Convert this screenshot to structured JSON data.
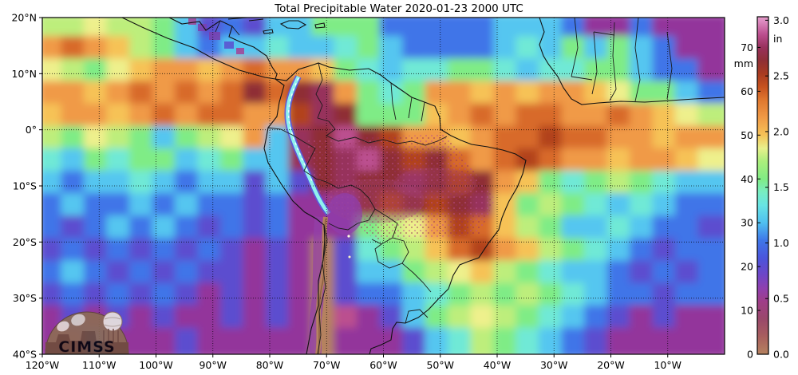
{
  "title": "Total Precipitable Water  2020-01-23 2000 UTC",
  "axes": {
    "lon_ticks": [
      "120°W",
      "110°W",
      "100°W",
      "90°W",
      "80°W",
      "70°W",
      "60°W",
      "50°W",
      "40°W",
      "30°W",
      "20°W",
      "10°W"
    ],
    "lat_ticks": [
      "20°N",
      "10°N",
      "0°",
      "10°S",
      "20°S",
      "30°S",
      "40°S"
    ]
  },
  "colorbar": {
    "unit_left": "mm",
    "unit_right": "in",
    "scale_max_mm": 77,
    "ticks_mm": [
      0,
      10,
      20,
      30,
      40,
      50,
      60,
      70
    ],
    "ticks_in": [
      {
        "v": 0.0,
        "l": "0.0"
      },
      {
        "v": 0.5,
        "l": "0.5"
      },
      {
        "v": 1.0,
        "l": "1.0"
      },
      {
        "v": 1.5,
        "l": "1.5"
      },
      {
        "v": 2.0,
        "l": "2.0"
      },
      {
        "v": 2.5,
        "l": "2.5"
      },
      {
        "v": 3.0,
        "l": "3.0"
      }
    ],
    "stops": [
      {
        "v": 0,
        "c": "#b5825f"
      },
      {
        "v": 4,
        "c": "#a85f5e"
      },
      {
        "v": 8,
        "c": "#99486a"
      },
      {
        "v": 12,
        "c": "#a03e88"
      },
      {
        "v": 15,
        "c": "#8f3fae"
      },
      {
        "v": 18,
        "c": "#6f46c6"
      },
      {
        "v": 22,
        "c": "#4a55dc"
      },
      {
        "v": 26,
        "c": "#3f77e8"
      },
      {
        "v": 30,
        "c": "#4fc0f0"
      },
      {
        "v": 34,
        "c": "#68e4e4"
      },
      {
        "v": 37,
        "c": "#78edc2"
      },
      {
        "v": 40,
        "c": "#80ec84"
      },
      {
        "v": 44,
        "c": "#abee7c"
      },
      {
        "v": 47,
        "c": "#e8f08c"
      },
      {
        "v": 50,
        "c": "#f6c257"
      },
      {
        "v": 54,
        "c": "#f09a46"
      },
      {
        "v": 58,
        "c": "#e0782f"
      },
      {
        "v": 61,
        "c": "#c6521f"
      },
      {
        "v": 64,
        "c": "#a83a20"
      },
      {
        "v": 67,
        "c": "#8f2f36"
      },
      {
        "v": 70,
        "c": "#98315c"
      },
      {
        "v": 73,
        "c": "#bb4f8f"
      },
      {
        "v": 76,
        "c": "#dc8cc0"
      },
      {
        "v": 77,
        "c": "#e59cc9"
      }
    ]
  },
  "logo": {
    "text": "CIMSS"
  },
  "map_grid": {
    "palette": {
      "a": "#b5825f",
      "p": "#93369b",
      "P": "#5b4ecf",
      "b": "#3f74e8",
      "c": "#54c6f0",
      "t": "#6fe9d6",
      "g": "#7fec86",
      "G": "#bdee7c",
      "y": "#eef08c",
      "Y": "#f6c257",
      "o": "#f09a46",
      "O": "#d86b2a",
      "r": "#b2421f",
      "R": "#8f2f36",
      "m": "#97315c",
      "M": "#bb4f8f",
      "k": "#dc8cc0"
    },
    "rows": [
      "GGyGGgcPbPccgggbbbbbcccbppbppp",
      "oOoYGgcbcctcctgcbbbbctcgcgcbpp",
      "yGgyYooYoOooYgtcttggtcttggcbbp",
      "ooYoOoOoORORmogtgooYoYooYyggcb",
      "YooYoOoOOoormRgggYoOoOOooOoYyG",
      "GgyGgcgGyocmRMRrooYoOOrOOooYoo",
      "tcgtggctgccmRmMRrROoOrOooYooYy",
      "cbcctcbccPcPRmRRmRrRoYgtgGgtcc",
      "bcbbcbcbbPbpppRrRrRmYgGgtctcbb",
      "bPbcbcbPbPbpppgGyorOYGgcctcbbP",
      "PbPbPbPbPpPpaPtgGYOroYGgtcbPbb",
      "bcbPbPbPPpPpaPccgGyYGgtccbPbPb",
      "PbPbPbPpPpPpaPbbctgGgGgtcbbPbb",
      "pPpPpPppPpPpaMpPcgGyGgtcbPpPpp",
      "ppPpppPpppppapppPctGgtcbPppppp"
    ]
  }
}
